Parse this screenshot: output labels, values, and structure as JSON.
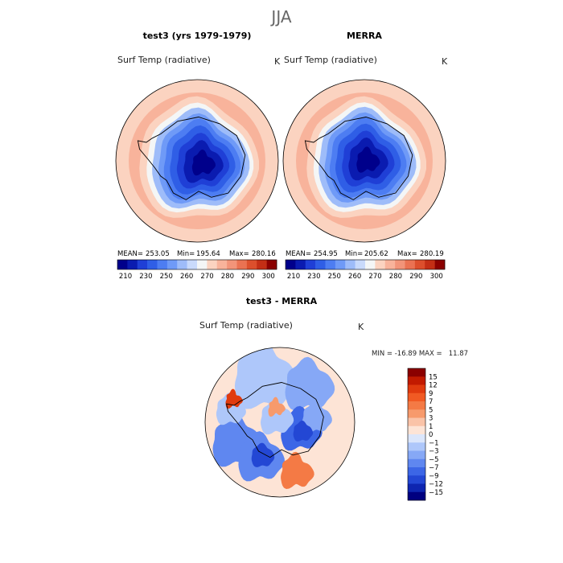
{
  "page_title": "JJA",
  "panels": [
    {
      "title": "test3 (yrs 1979-1979)",
      "var_label": "Surf Temp (radiative)",
      "unit": "K",
      "stats": {
        "mean_label": "MEAN=",
        "mean": "253.05",
        "min_label": "Min=",
        "min": "195.64",
        "max_label": "Max=",
        "max": "280.16"
      }
    },
    {
      "title": "MERRA",
      "var_label": "Surf Temp (radiative)",
      "unit": "K",
      "stats": {
        "mean_label": "MEAN=",
        "mean": "254.95",
        "min_label": "Min=",
        "min": "205.62",
        "max_label": "Max=",
        "max": "280.19"
      }
    },
    {
      "title": "test3 - MERRA",
      "var_label": "Surf Temp (radiative)",
      "unit": "K",
      "minmax_text": "MIN = -16.89 MAX =   11.87"
    }
  ],
  "chart_data": [
    {
      "type": "heatmap",
      "title": "test3 (yrs 1979-1979)",
      "projection": "south polar stereographic",
      "variable": "Surf Temp (radiative)",
      "unit": "K",
      "mean": 253.05,
      "min": 195.64,
      "max": 280.16,
      "colorbar_levels": [
        210,
        220,
        230,
        240,
        250,
        255,
        260,
        265,
        270,
        275,
        280,
        285,
        290,
        295,
        300
      ],
      "colorbar_tick_labels": [
        "210",
        "230",
        "250",
        "260",
        "270",
        "280",
        "290",
        "300"
      ],
      "colorbar_colors": [
        "#00008b",
        "#0a1bb0",
        "#1f3fd6",
        "#2f5ee6",
        "#4d7df2",
        "#6f9af7",
        "#9ebcf9",
        "#c9dafb",
        "#f4f6f6",
        "#fbd3c0",
        "#f8b39b",
        "#f29479",
        "#ea7252",
        "#dc4f2c",
        "#c32e15",
        "#8b0000"
      ]
    },
    {
      "type": "heatmap",
      "title": "MERRA",
      "projection": "south polar stereographic",
      "variable": "Surf Temp (radiative)",
      "unit": "K",
      "mean": 254.95,
      "min": 205.62,
      "max": 280.19,
      "colorbar_levels": [
        210,
        220,
        230,
        240,
        250,
        255,
        260,
        265,
        270,
        275,
        280,
        285,
        290,
        295,
        300
      ],
      "colorbar_tick_labels": [
        "210",
        "230",
        "250",
        "260",
        "270",
        "280",
        "290",
        "300"
      ],
      "colorbar_colors": [
        "#00008b",
        "#0a1bb0",
        "#1f3fd6",
        "#2f5ee6",
        "#4d7df2",
        "#6f9af7",
        "#9ebcf9",
        "#c9dafb",
        "#f4f6f6",
        "#fbd3c0",
        "#f8b39b",
        "#f29479",
        "#ea7252",
        "#dc4f2c",
        "#c32e15",
        "#8b0000"
      ]
    },
    {
      "type": "heatmap",
      "title": "test3 - MERRA",
      "projection": "south polar stereographic",
      "variable": "Surf Temp (radiative)",
      "unit": "K",
      "min": -16.89,
      "max": 11.87,
      "colorbar_levels": [
        -15,
        -12,
        -9,
        -7,
        -5,
        -3,
        -1,
        0,
        1,
        3,
        5,
        7,
        9,
        12,
        15
      ],
      "colorbar_tick_labels": [
        "15",
        "12",
        "9",
        "7",
        "5",
        "3",
        "1",
        "0",
        "−1",
        "−3",
        "−5",
        "−7",
        "−9",
        "−12",
        "−15"
      ],
      "colorbar_colors": [
        "#8b0000",
        "#c21a00",
        "#e03a0e",
        "#f15a23",
        "#f47a45",
        "#f79a6c",
        "#fac3a8",
        "#fde4d6",
        "#dbe6fb",
        "#aec7fa",
        "#86a8f6",
        "#5f87f0",
        "#3c66e6",
        "#2347d4",
        "#0e25b0",
        "#000080"
      ]
    }
  ]
}
